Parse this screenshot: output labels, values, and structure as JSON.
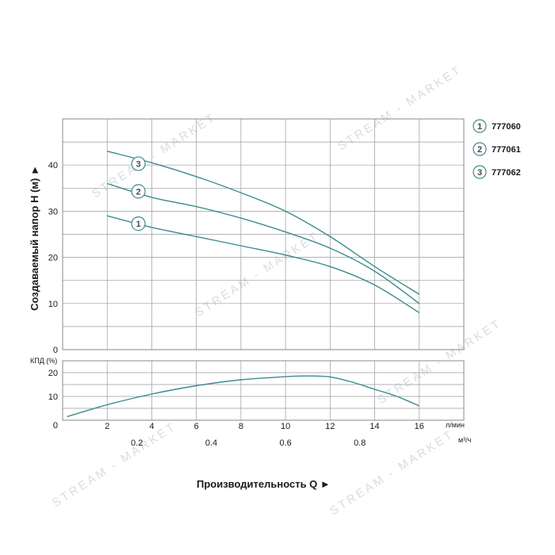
{
  "watermark": "STREAM - MARKET",
  "chart_data": [
    {
      "name": "head-curves",
      "type": "line",
      "ylabel": "Создаваемый напор H (м) ►",
      "xlim": [
        0,
        18
      ],
      "ylim": [
        0,
        50
      ],
      "yticks": [
        0,
        10,
        20,
        30,
        40
      ],
      "grid": true,
      "legend": {
        "placement": "right",
        "entries": [
          {
            "marker": "1",
            "label": "777060"
          },
          {
            "marker": "2",
            "label": "777061"
          },
          {
            "marker": "3",
            "label": "777062"
          }
        ]
      },
      "series": [
        {
          "name": "1",
          "x": [
            2,
            4,
            6,
            8,
            10,
            12,
            14,
            16
          ],
          "y": [
            29,
            26.5,
            24.5,
            22.5,
            20.5,
            18,
            14,
            8
          ]
        },
        {
          "name": "2",
          "x": [
            2,
            4,
            6,
            8,
            10,
            12,
            14,
            16
          ],
          "y": [
            36,
            33,
            31,
            28.5,
            25.5,
            22,
            17,
            10
          ]
        },
        {
          "name": "3",
          "x": [
            2,
            4,
            6,
            8,
            10,
            12,
            14,
            16
          ],
          "y": [
            43,
            40.5,
            37.5,
            34,
            30,
            24.5,
            18,
            12
          ]
        }
      ],
      "markers": [
        {
          "label": "3",
          "x": 3.4,
          "y": 40.3
        },
        {
          "label": "2",
          "x": 3.4,
          "y": 34.3
        },
        {
          "label": "1",
          "x": 3.4,
          "y": 27.3
        }
      ]
    },
    {
      "name": "efficiency-curve",
      "type": "line",
      "ylabel": "КПД (%)",
      "xlabel": "Производительность Q ►",
      "xlim": [
        0,
        18
      ],
      "ylim": [
        0,
        25
      ],
      "yticks": [
        0,
        10,
        20
      ],
      "xticks": [
        2,
        4,
        6,
        8,
        10,
        12,
        14,
        16
      ],
      "xunit": "л/мин",
      "x2ticks": [
        {
          "label": "0.2",
          "x": 3.33
        },
        {
          "label": "0.4",
          "x": 6.67
        },
        {
          "label": "0.6",
          "x": 10
        },
        {
          "label": "0.8",
          "x": 13.33
        }
      ],
      "x2unit": "м³/ч",
      "grid": true,
      "series": [
        {
          "x": [
            0.2,
            2,
            4,
            6,
            8,
            10,
            11,
            12,
            13,
            14,
            15,
            16
          ],
          "y": [
            1.5,
            6.5,
            11,
            14.5,
            17,
            18.3,
            18.6,
            18.2,
            16,
            13,
            10,
            6
          ]
        }
      ]
    }
  ]
}
